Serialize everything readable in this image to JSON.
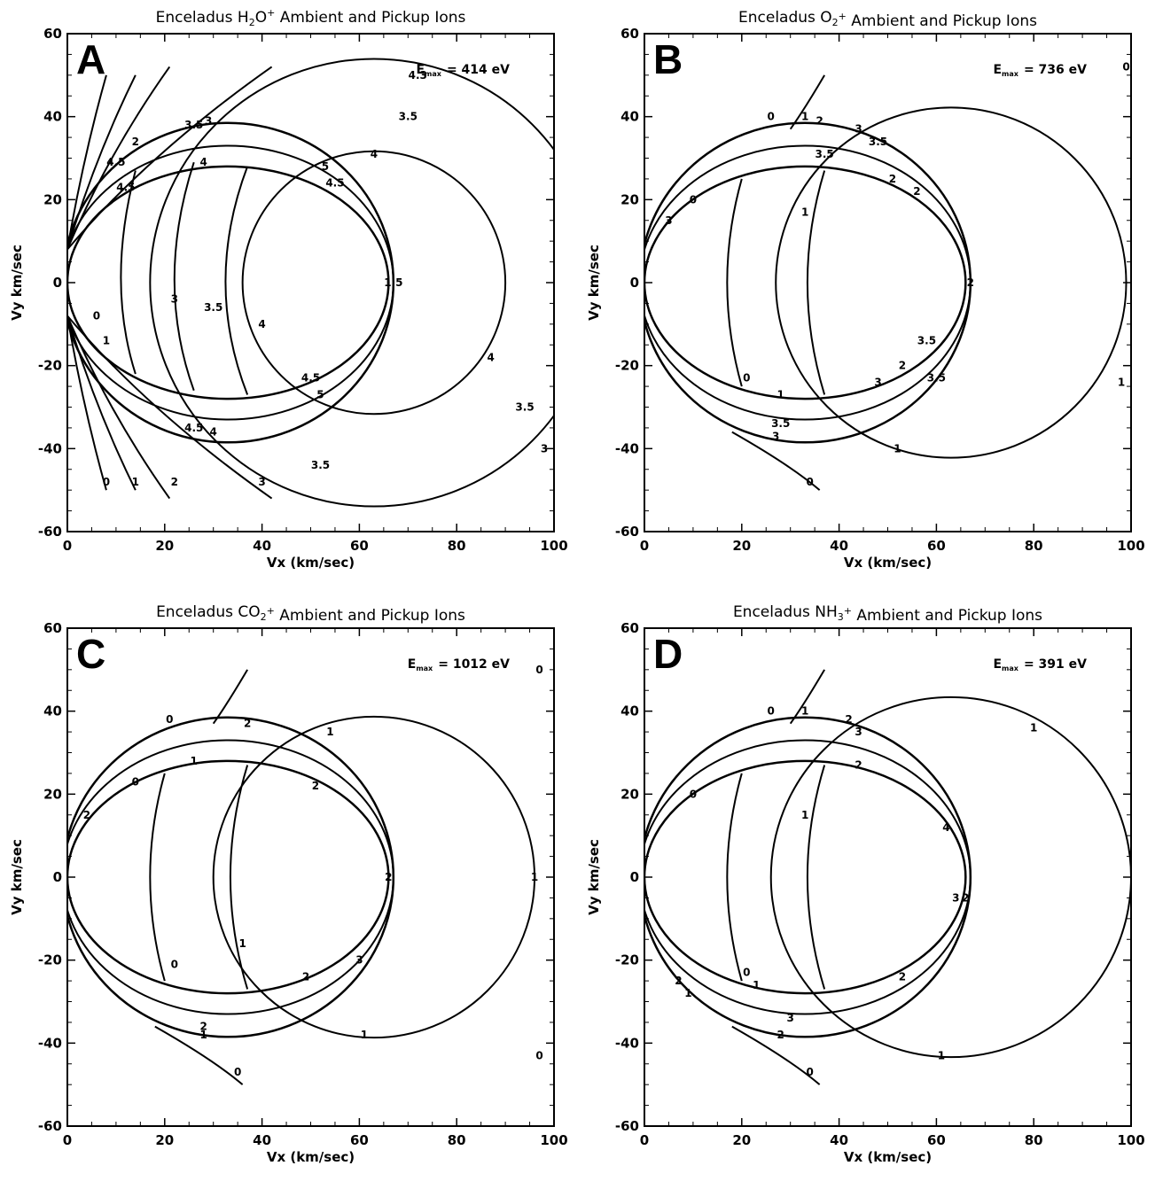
{
  "chart_data": [
    {
      "type": "contour",
      "panel": "A",
      "title": "Enceladus H2O+ Ambient and Pickup Ions",
      "title_parts": [
        "Enceladus H",
        "2",
        "O",
        "+",
        " Ambient and Pickup Ions"
      ],
      "emax_label": "E",
      "emax_sub": "max",
      "emax_value": "= 414 eV",
      "xlabel": "Vx (km/sec)",
      "ylabel": "Vy km/sec",
      "xlim": [
        0,
        100
      ],
      "ylim": [
        -60,
        60
      ],
      "xticks": [
        0,
        20,
        40,
        60,
        80,
        100
      ],
      "yticks": [
        -60,
        -40,
        -20,
        0,
        20,
        40,
        60
      ],
      "contour_levels": [
        "0",
        "1",
        "2",
        "3",
        "3.5",
        "4",
        "4.5",
        "5"
      ],
      "contour_labels": [
        {
          "text": "4.3",
          "x": 72,
          "y": 50
        },
        {
          "text": "3.5",
          "x": 70,
          "y": 40
        },
        {
          "text": "4",
          "x": 63,
          "y": 31
        },
        {
          "text": "3",
          "x": 29,
          "y": 39
        },
        {
          "text": "3.5",
          "x": 26,
          "y": 38
        },
        {
          "text": "2",
          "x": 14,
          "y": 34
        },
        {
          "text": "4.5",
          "x": 10,
          "y": 29
        },
        {
          "text": "4",
          "x": 28,
          "y": 29
        },
        {
          "text": "5",
          "x": 53,
          "y": 28
        },
        {
          "text": "4.5",
          "x": 55,
          "y": 24
        },
        {
          "text": "4.5",
          "x": 12,
          "y": 23
        },
        {
          "text": "3",
          "x": 22,
          "y": -4
        },
        {
          "text": "3.5",
          "x": 30,
          "y": -6
        },
        {
          "text": "4",
          "x": 40,
          "y": -10
        },
        {
          "text": "4.5",
          "x": 50,
          "y": -23
        },
        {
          "text": "5",
          "x": 52,
          "y": -27
        },
        {
          "text": "0",
          "x": 6,
          "y": -8
        },
        {
          "text": "1",
          "x": 8,
          "y": -14
        },
        {
          "text": "4",
          "x": 30,
          "y": -36
        },
        {
          "text": "4.5",
          "x": 26,
          "y": -35
        },
        {
          "text": "3.5",
          "x": 52,
          "y": -44
        },
        {
          "text": "3",
          "x": 98,
          "y": -40
        },
        {
          "text": "3.5",
          "x": 94,
          "y": -30
        },
        {
          "text": "4",
          "x": 87,
          "y": -18
        },
        {
          "text": "0",
          "x": 8,
          "y": -48
        },
        {
          "text": "1",
          "x": 14,
          "y": -48
        },
        {
          "text": "2",
          "x": 22,
          "y": -48
        },
        {
          "text": "3",
          "x": 40,
          "y": -48
        },
        {
          "text": "1.5",
          "x": 67,
          "y": 0
        }
      ]
    },
    {
      "type": "contour",
      "panel": "B",
      "title": "Enceladus O2+ Ambient and Pickup Ions",
      "title_parts": [
        "Enceladus O",
        "2",
        "",
        "+",
        " Ambient and Pickup Ions"
      ],
      "emax_label": "E",
      "emax_sub": "max",
      "emax_value": "= 736 eV",
      "xlabel": "Vx (km/sec)",
      "ylabel": "Vy km/sec",
      "xlim": [
        0,
        100
      ],
      "ylim": [
        -60,
        60
      ],
      "xticks": [
        0,
        20,
        40,
        60,
        80,
        100
      ],
      "yticks": [
        -60,
        -40,
        -20,
        0,
        20,
        40,
        60
      ],
      "contour_levels": [
        "0",
        "1",
        "2",
        "3",
        "3.5"
      ],
      "contour_labels": [
        {
          "text": "0",
          "x": 26,
          "y": 40
        },
        {
          "text": "1",
          "x": 33,
          "y": 40
        },
        {
          "text": "2",
          "x": 36,
          "y": 39
        },
        {
          "text": "3",
          "x": 44,
          "y": 37
        },
        {
          "text": "3.5",
          "x": 48,
          "y": 34
        },
        {
          "text": "3.5",
          "x": 37,
          "y": 31
        },
        {
          "text": "2",
          "x": 51,
          "y": 25
        },
        {
          "text": "2",
          "x": 56,
          "y": 22
        },
        {
          "text": "0",
          "x": 10,
          "y": 20
        },
        {
          "text": "3",
          "x": 5,
          "y": 15
        },
        {
          "text": "1",
          "x": 33,
          "y": 17
        },
        {
          "text": "0",
          "x": 21,
          "y": -23
        },
        {
          "text": "1",
          "x": 28,
          "y": -27
        },
        {
          "text": "3",
          "x": 48,
          "y": -24
        },
        {
          "text": "2",
          "x": 53,
          "y": -20
        },
        {
          "text": "3.5",
          "x": 58,
          "y": -14
        },
        {
          "text": "3.5",
          "x": 60,
          "y": -23
        },
        {
          "text": "3.5",
          "x": 28,
          "y": -34
        },
        {
          "text": "3",
          "x": 27,
          "y": -37
        },
        {
          "text": "0",
          "x": 34,
          "y": -48
        },
        {
          "text": "1",
          "x": 52,
          "y": -40
        },
        {
          "text": "1",
          "x": 98,
          "y": -24
        },
        {
          "text": "0",
          "x": 99,
          "y": 52
        },
        {
          "text": "2",
          "x": 67,
          "y": 0
        }
      ]
    },
    {
      "type": "contour",
      "panel": "C",
      "title": "Enceladus CO2+ Ambient and Pickup Ions",
      "title_parts": [
        "Enceladus CO",
        "2",
        "",
        "+",
        " Ambient and Pickup Ions"
      ],
      "emax_label": "E",
      "emax_sub": "max",
      "emax_value": "= 1012 eV",
      "xlabel": "Vx (km/sec)",
      "ylabel": "Vy km/sec",
      "xlim": [
        0,
        100
      ],
      "ylim": [
        -60,
        60
      ],
      "xticks": [
        0,
        20,
        40,
        60,
        80,
        100
      ],
      "yticks": [
        -60,
        -40,
        -20,
        0,
        20,
        40,
        60
      ],
      "contour_levels": [
        "0",
        "1",
        "2",
        "3"
      ],
      "contour_labels": [
        {
          "text": "0",
          "x": 21,
          "y": 38
        },
        {
          "text": "2",
          "x": 37,
          "y": 37
        },
        {
          "text": "1",
          "x": 54,
          "y": 35
        },
        {
          "text": "2",
          "x": 51,
          "y": 22
        },
        {
          "text": "1",
          "x": 26,
          "y": 28
        },
        {
          "text": "0",
          "x": 14,
          "y": 23
        },
        {
          "text": "2",
          "x": 4,
          "y": 15
        },
        {
          "text": "1",
          "x": 96,
          "y": 0
        },
        {
          "text": "0",
          "x": 22,
          "y": -21
        },
        {
          "text": "1",
          "x": 36,
          "y": -16
        },
        {
          "text": "2",
          "x": 49,
          "y": -24
        },
        {
          "text": "3",
          "x": 60,
          "y": -20
        },
        {
          "text": "2",
          "x": 28,
          "y": -36
        },
        {
          "text": "1",
          "x": 28,
          "y": -38
        },
        {
          "text": "1",
          "x": 61,
          "y": -38
        },
        {
          "text": "0",
          "x": 35,
          "y": -47
        },
        {
          "text": "0",
          "x": 97,
          "y": -43
        },
        {
          "text": "0",
          "x": 97,
          "y": 50
        },
        {
          "text": "2",
          "x": 66,
          "y": 0
        }
      ]
    },
    {
      "type": "contour",
      "panel": "D",
      "title": "Enceladus NH3+ Ambient and Pickup Ions",
      "title_parts": [
        "Enceladus NH",
        "3",
        "",
        "+",
        " Ambient and Pickup Ions"
      ],
      "emax_label": "E",
      "emax_sub": "max",
      "emax_value": "= 391 eV",
      "xlabel": "Vx (km/sec)",
      "ylabel": "Vy km/sec",
      "xlim": [
        0,
        100
      ],
      "ylim": [
        -60,
        60
      ],
      "xticks": [
        0,
        20,
        40,
        60,
        80,
        100
      ],
      "yticks": [
        -60,
        -40,
        -20,
        0,
        20,
        40,
        60
      ],
      "contour_levels": [
        "0",
        "1",
        "2",
        "3"
      ],
      "contour_labels": [
        {
          "text": "0",
          "x": 26,
          "y": 40
        },
        {
          "text": "1",
          "x": 33,
          "y": 40
        },
        {
          "text": "2",
          "x": 42,
          "y": 38
        },
        {
          "text": "3",
          "x": 44,
          "y": 35
        },
        {
          "text": "2",
          "x": 44,
          "y": 27
        },
        {
          "text": "1",
          "x": 33,
          "y": 15
        },
        {
          "text": "0",
          "x": 10,
          "y": 20
        },
        {
          "text": "4",
          "x": 62,
          "y": 12
        },
        {
          "text": "1",
          "x": 80,
          "y": 36
        },
        {
          "text": "0",
          "x": 21,
          "y": -23
        },
        {
          "text": "1",
          "x": 23,
          "y": -26
        },
        {
          "text": "2",
          "x": 7,
          "y": -25
        },
        {
          "text": "1",
          "x": 9,
          "y": -28
        },
        {
          "text": "2",
          "x": 53,
          "y": -24
        },
        {
          "text": "3",
          "x": 30,
          "y": -34
        },
        {
          "text": "2",
          "x": 28,
          "y": -38
        },
        {
          "text": "0",
          "x": 34,
          "y": -47
        },
        {
          "text": "1",
          "x": 61,
          "y": -43
        },
        {
          "text": "3",
          "x": 64,
          "y": -5
        },
        {
          "text": "2",
          "x": 66,
          "y": -5
        }
      ]
    }
  ]
}
